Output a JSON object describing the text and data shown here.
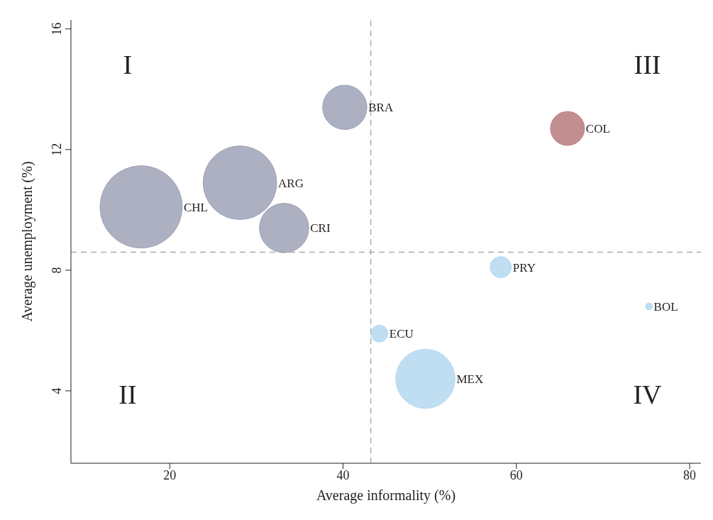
{
  "chart_data": {
    "type": "bubble",
    "xlabel": "Average informality (%)",
    "ylabel": "Average unemployment (%)",
    "xlim": [
      8.6,
      81.3
    ],
    "xticks": [
      20,
      40,
      60,
      80
    ],
    "ylim": [
      1.6,
      16.3
    ],
    "yticks": [
      4,
      8,
      12,
      16
    ],
    "grid": false,
    "legend": false,
    "relative": false,
    "series": [
      {
        "name": "CHL",
        "color": "#9ea2b6",
        "x": [
          16.7
        ],
        "values": [
          10.1
        ],
        "sizes": [
          1
        ]
      },
      {
        "name": "ARG",
        "color": "#9ea2b6",
        "x": [
          28.1
        ],
        "values": [
          10.9
        ],
        "sizes": [
          0.8
        ]
      },
      {
        "name": "CRI",
        "color": "#9ea2b6",
        "x": [
          33.2
        ],
        "values": [
          9.4
        ],
        "sizes": [
          0.36
        ]
      },
      {
        "name": "BRA",
        "color": "#9ea2b6",
        "x": [
          40.2
        ],
        "values": [
          13.4
        ],
        "sizes": [
          0.29
        ]
      },
      {
        "name": "COL",
        "color": "#b87a7c",
        "x": [
          65.9
        ],
        "values": [
          12.7
        ],
        "sizes": [
          0.17
        ]
      },
      {
        "name": "PRY",
        "color": "#b5d8f0",
        "x": [
          58.2
        ],
        "values": [
          8.1
        ],
        "sizes": [
          0.067
        ]
      },
      {
        "name": "BOL",
        "color": "#b5d8f0",
        "x": [
          75.3
        ],
        "values": [
          6.8
        ],
        "sizes": [
          0.007
        ]
      },
      {
        "name": "ECU",
        "color": "#b5d8f0",
        "x": [
          44.2
        ],
        "values": [
          5.9
        ],
        "sizes": [
          0.043
        ]
      },
      {
        "name": "MEX",
        "color": "#b5d8f0",
        "x": [
          49.5
        ],
        "values": [
          4.4
        ],
        "sizes": [
          0.52
        ]
      }
    ],
    "ref_lines": [
      {
        "axis": "x",
        "value": 43.2,
        "color": "#aaaaaa",
        "line_style": "dashed"
      },
      {
        "axis": "y",
        "value": 8.6,
        "color": "#aaaaaa",
        "line_style": "dashed"
      }
    ],
    "annotations": [
      "I",
      "II",
      "III",
      "IV"
    ]
  }
}
